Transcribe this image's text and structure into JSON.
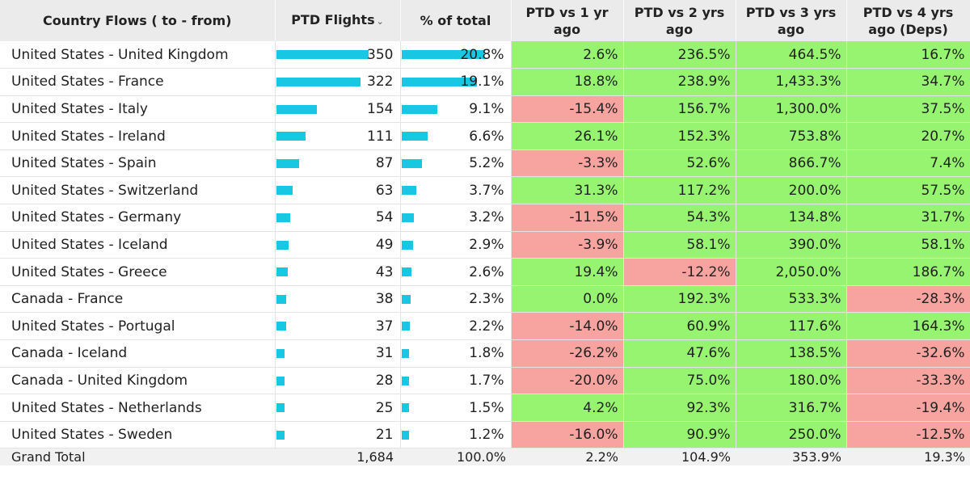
{
  "table": {
    "headers": [
      "Country Flows ( to - from)",
      "PTD Flights",
      "% of total",
      "PTD vs 1 yr ago",
      "PTD vs 2 yrs ago",
      "PTD vs 3 yrs ago",
      "PTD vs 4 yrs ago (Deps)"
    ],
    "sort_indicator": "⌄",
    "rows": [
      {
        "flow": "United States - United Kingdom",
        "flights": "350",
        "flights_value": 350,
        "pct_total": "20.8%",
        "pct_value": 20.8,
        "vs1": "2.6%",
        "vs2": "236.5%",
        "vs3": "464.5%",
        "vs4": "16.7%"
      },
      {
        "flow": "United States - France",
        "flights": "322",
        "flights_value": 322,
        "pct_total": "19.1%",
        "pct_value": 19.1,
        "vs1": "18.8%",
        "vs2": "238.9%",
        "vs3": "1,433.3%",
        "vs4": "34.7%"
      },
      {
        "flow": "United States - Italy",
        "flights": "154",
        "flights_value": 154,
        "pct_total": "9.1%",
        "pct_value": 9.1,
        "vs1": "-15.4%",
        "vs2": "156.7%",
        "vs3": "1,300.0%",
        "vs4": "37.5%"
      },
      {
        "flow": "United States - Ireland",
        "flights": "111",
        "flights_value": 111,
        "pct_total": "6.6%",
        "pct_value": 6.6,
        "vs1": "26.1%",
        "vs2": "152.3%",
        "vs3": "753.8%",
        "vs4": "20.7%"
      },
      {
        "flow": "United States - Spain",
        "flights": "87",
        "flights_value": 87,
        "pct_total": "5.2%",
        "pct_value": 5.2,
        "vs1": "-3.3%",
        "vs2": "52.6%",
        "vs3": "866.7%",
        "vs4": "7.4%"
      },
      {
        "flow": "United States - Switzerland",
        "flights": "63",
        "flights_value": 63,
        "pct_total": "3.7%",
        "pct_value": 3.7,
        "vs1": "31.3%",
        "vs2": "117.2%",
        "vs3": "200.0%",
        "vs4": "57.5%"
      },
      {
        "flow": "United States - Germany",
        "flights": "54",
        "flights_value": 54,
        "pct_total": "3.2%",
        "pct_value": 3.2,
        "vs1": "-11.5%",
        "vs2": "54.3%",
        "vs3": "134.8%",
        "vs4": "31.7%"
      },
      {
        "flow": "United States - Iceland",
        "flights": "49",
        "flights_value": 49,
        "pct_total": "2.9%",
        "pct_value": 2.9,
        "vs1": "-3.9%",
        "vs2": "58.1%",
        "vs3": "390.0%",
        "vs4": "58.1%"
      },
      {
        "flow": "United States - Greece",
        "flights": "43",
        "flights_value": 43,
        "pct_total": "2.6%",
        "pct_value": 2.6,
        "vs1": "19.4%",
        "vs2": "-12.2%",
        "vs3": "2,050.0%",
        "vs4": "186.7%"
      },
      {
        "flow": "Canada - France",
        "flights": "38",
        "flights_value": 38,
        "pct_total": "2.3%",
        "pct_value": 2.3,
        "vs1": "0.0%",
        "vs2": "192.3%",
        "vs3": "533.3%",
        "vs4": "-28.3%"
      },
      {
        "flow": "United States - Portugal",
        "flights": "37",
        "flights_value": 37,
        "pct_total": "2.2%",
        "pct_value": 2.2,
        "vs1": "-14.0%",
        "vs2": "60.9%",
        "vs3": "117.6%",
        "vs4": "164.3%"
      },
      {
        "flow": "Canada - Iceland",
        "flights": "31",
        "flights_value": 31,
        "pct_total": "1.8%",
        "pct_value": 1.8,
        "vs1": "-26.2%",
        "vs2": "47.6%",
        "vs3": "138.5%",
        "vs4": "-32.6%"
      },
      {
        "flow": "Canada - United Kingdom",
        "flights": "28",
        "flights_value": 28,
        "pct_total": "1.7%",
        "pct_value": 1.7,
        "vs1": "-20.0%",
        "vs2": "75.0%",
        "vs3": "180.0%",
        "vs4": "-33.3%"
      },
      {
        "flow": "United States - Netherlands",
        "flights": "25",
        "flights_value": 25,
        "pct_total": "1.5%",
        "pct_value": 1.5,
        "vs1": "4.2%",
        "vs2": "92.3%",
        "vs3": "316.7%",
        "vs4": "-19.4%"
      },
      {
        "flow": "United States - Sweden",
        "flights": "21",
        "flights_value": 21,
        "pct_total": "1.2%",
        "pct_value": 1.2,
        "vs1": "-16.0%",
        "vs2": "90.9%",
        "vs3": "250.0%",
        "vs4": "-12.5%"
      }
    ],
    "total": {
      "label": "Grand Total",
      "flights": "1,684",
      "pct_total": "100.0%",
      "vs1": "2.2%",
      "vs2": "104.9%",
      "vs3": "353.9%",
      "vs4": "19.3%"
    }
  },
  "colors": {
    "bar": "#18c8e2",
    "positive": "#97f470",
    "negative": "#f7a4a0",
    "header_bg": "#ebebeb",
    "total_bg": "#f1f1f1"
  }
}
